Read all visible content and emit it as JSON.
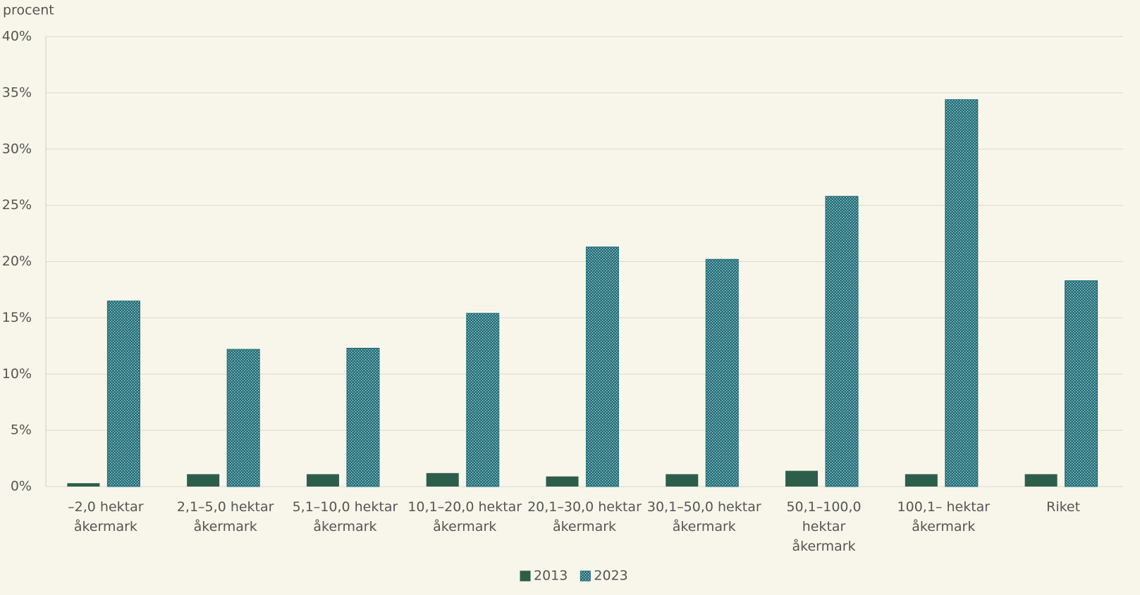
{
  "chart_data": {
    "type": "bar",
    "y_label": "procent",
    "categories": [
      "–2,0 hektar\nåkermark",
      "2,1–5,0 hektar\nåkermark",
      "5,1–10,0 hektar\nåkermark",
      "10,1–20,0 hektar\nåkermark",
      "20,1–30,0 hektar\nåkermark",
      "30,1–50,0 hektar\nåkermark",
      "50,1–100,0 hektar\nåkermark",
      "100,1– hektar\nåkermark",
      "Riket"
    ],
    "series": [
      {
        "name": "2013",
        "color": "#2d5e4b",
        "values": [
          0.3,
          1.1,
          1.1,
          1.2,
          0.9,
          1.1,
          1.4,
          1.1,
          1.1
        ]
      },
      {
        "name": "2023",
        "color": "#1f6e78",
        "values": [
          16.5,
          12.2,
          12.3,
          15.4,
          21.3,
          20.2,
          25.8,
          34.4,
          18.3
        ]
      }
    ],
    "ylim": [
      0,
      40
    ],
    "yticks": [
      {
        "value": 0,
        "label": "0%"
      },
      {
        "value": 5,
        "label": "5%"
      },
      {
        "value": 10,
        "label": "10%"
      },
      {
        "value": 15,
        "label": "15%"
      },
      {
        "value": 20,
        "label": "20%"
      },
      {
        "value": 25,
        "label": "25%"
      },
      {
        "value": 30,
        "label": "30%"
      },
      {
        "value": 35,
        "label": "35%"
      },
      {
        "value": 40,
        "label": "40%"
      }
    ],
    "grid": true
  }
}
